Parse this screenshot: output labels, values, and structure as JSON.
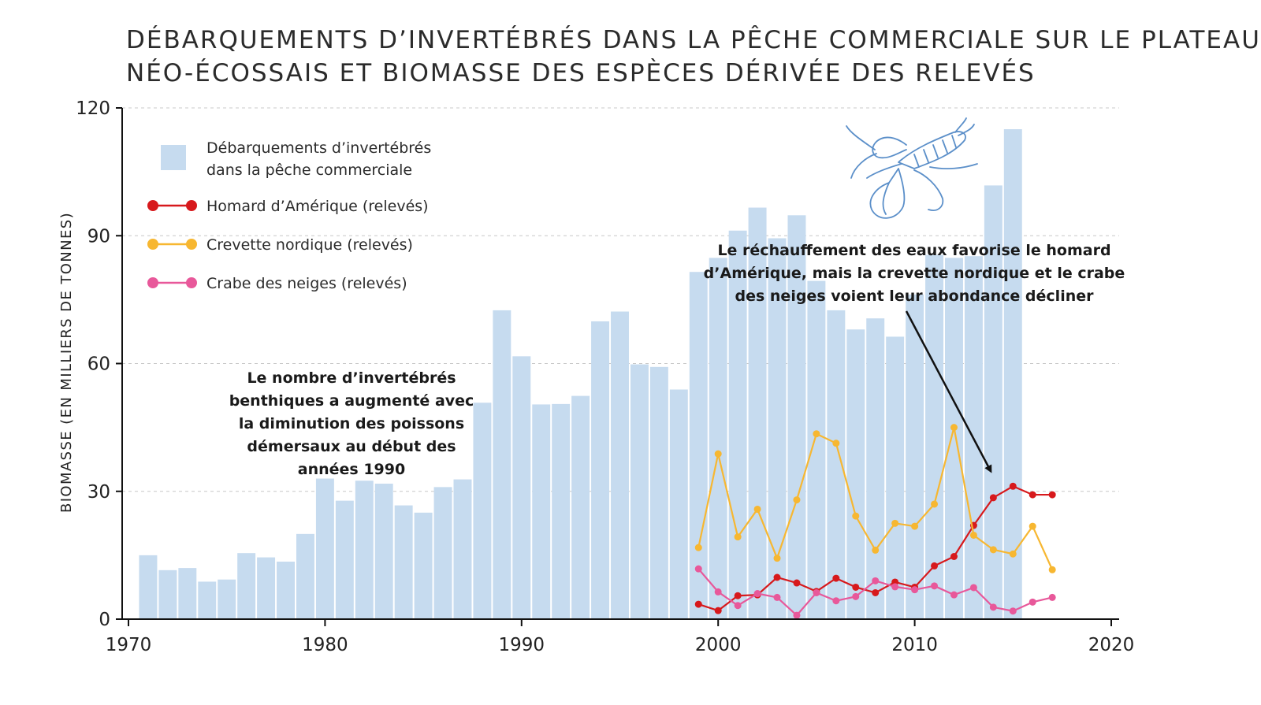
{
  "chart_data": {
    "type": "bar+line",
    "title_lines": [
      "DÉBARQUEMENTS D’INVERTÉBRÉS DANS LA PÊCHE COMMERCIALE SUR LE PLATEAU",
      "NÉO-ÉCOSSAIS ET BIOMASSE DES ESPÈCES DÉRIVÉE DES RELEVÉS"
    ],
    "ylabel": "BIOMASSE (EN MILLIERS DE TONNES)",
    "xlabel": "",
    "xlim": [
      1970,
      2020
    ],
    "ylim": [
      0,
      120
    ],
    "x_ticks": [
      "1970",
      "1980",
      "1990",
      "2000",
      "2010",
      "2020"
    ],
    "y_ticks": [
      "0",
      "30",
      "60",
      "90",
      "120"
    ],
    "grid": "horizontal dashed",
    "legend_position": "top-left",
    "bars": {
      "name": "Débarquements d’invertébrés dans la pêche commerciale",
      "legend_lines": [
        "Débarquements d’invertébrés",
        "dans la pêche commerciale"
      ],
      "color": "#c6dbef",
      "years": [
        1971,
        1972,
        1973,
        1974,
        1975,
        1976,
        1977,
        1978,
        1979,
        1980,
        1981,
        1982,
        1983,
        1984,
        1985,
        1986,
        1987,
        1988,
        1989,
        1990,
        1991,
        1992,
        1993,
        1994,
        1995,
        1996,
        1997,
        1998,
        1999,
        2000,
        2001,
        2002,
        2003,
        2004,
        2005,
        2006,
        2007,
        2008,
        2009,
        2010,
        2011,
        2012,
        2013,
        2014,
        2015
      ],
      "values": [
        15,
        11.5,
        12,
        8.8,
        9.3,
        15.5,
        14.5,
        13.5,
        20,
        33,
        27.8,
        32.5,
        31.8,
        26.7,
        25,
        31,
        32.8,
        50.8,
        72.5,
        61.7,
        50.4,
        50.5,
        52.4,
        69.9,
        72.2,
        59.8,
        59.2,
        53.9,
        81.5,
        84.8,
        91.2,
        96.6,
        89.4,
        94.8,
        79.4,
        72.5,
        68,
        70.6,
        66.3,
        76.2,
        85.5,
        84.8,
        85.2,
        101.8,
        115
      ]
    },
    "series": [
      {
        "name": "Homard d’Amérique (relevés)",
        "color": "#d7191c",
        "x": [
          1999,
          2000,
          2001,
          2002,
          2003,
          2004,
          2005,
          2006,
          2007,
          2008,
          2009,
          2010,
          2011,
          2012,
          2013,
          2014,
          2015,
          2016,
          2017
        ],
        "values": [
          3.5,
          2,
          5.5,
          5.7,
          9.8,
          8.5,
          6.5,
          9.6,
          7.5,
          6.2,
          8.7,
          7.5,
          12.5,
          14.7,
          22,
          28.5,
          31.2,
          29.2,
          29.2
        ]
      },
      {
        "name": "Crevette nordique (relevés)",
        "color": "#f7b731",
        "x": [
          1999,
          2000,
          2001,
          2002,
          2003,
          2004,
          2005,
          2006,
          2007,
          2008,
          2009,
          2010,
          2011,
          2012,
          2013,
          2014,
          2015,
          2016,
          2017
        ],
        "values": [
          16.8,
          38.8,
          19.3,
          25.8,
          14.3,
          28,
          43.5,
          41.3,
          24.2,
          16.2,
          22.5,
          21.8,
          27,
          45,
          19.7,
          16.3,
          15.3,
          21.8,
          11.6
        ]
      },
      {
        "name": "Crabe des neiges (relevés)",
        "color": "#e8589a",
        "x": [
          1999,
          2000,
          2001,
          2002,
          2003,
          2004,
          2005,
          2006,
          2007,
          2008,
          2009,
          2010,
          2011,
          2012,
          2013,
          2014,
          2015,
          2016,
          2017
        ],
        "values": [
          11.8,
          6.4,
          3.2,
          6,
          5.1,
          0.9,
          6.2,
          4.3,
          5.3,
          9,
          7.6,
          6.9,
          7.8,
          5.7,
          7.4,
          2.8,
          1.9,
          4,
          5.1
        ]
      }
    ],
    "annotations": [
      {
        "id": "benthic",
        "lines": [
          "Le nombre d’invertébrés",
          "benthiques a augmenté avec",
          "la diminution des poissons",
          "démersaux au début des",
          "années 1990"
        ]
      },
      {
        "id": "warming",
        "lines": [
          "Le réchauffement des eaux favorise le homard",
          "d’Amérique, mais la crevette nordique et le crabe",
          "des neiges voient leur abondance décliner"
        ]
      }
    ]
  },
  "icons": {
    "illustration": "lobster-icon",
    "line_color": "#5b8fc9"
  }
}
